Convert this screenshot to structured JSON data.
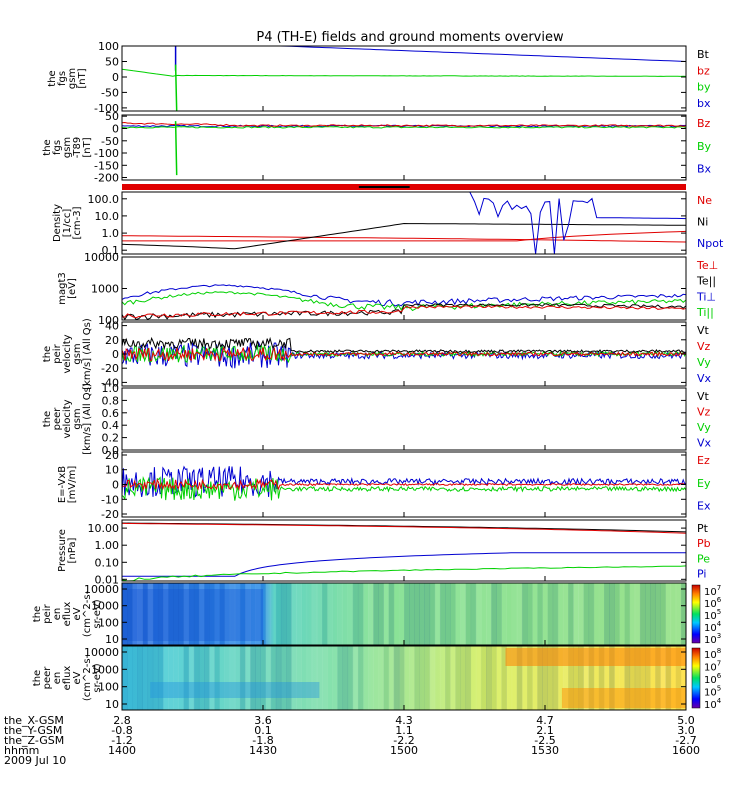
{
  "title": "P4 (TH-E) fields and ground moments overview",
  "colors": {
    "black": "#000000",
    "red": "#e00000",
    "green": "#00d000",
    "blue": "#0000d0"
  },
  "chart_data": [
    {
      "id": "fgs",
      "type": "line",
      "ylabel": [
        "the",
        "fgs",
        "gsm",
        "[nT]"
      ],
      "yticks": [
        "100",
        "50",
        "0",
        "-50",
        "-100"
      ],
      "yrange": [
        -110,
        100
      ],
      "legend": [
        {
          "label": "Bt",
          "color": "black"
        },
        {
          "label": "bz",
          "color": "red"
        },
        {
          "label": "by",
          "color": "green"
        },
        {
          "label": "bx",
          "color": "blue"
        }
      ]
    },
    {
      "id": "fgs_t89",
      "type": "line",
      "ylabel": [
        "the",
        "fgs",
        "gsm",
        "-T89",
        "[nT]"
      ],
      "yticks": [
        "50",
        "0",
        "-50",
        "-100",
        "-150",
        "-200"
      ],
      "yrange": [
        -210,
        55
      ],
      "legend": [
        {
          "label": "Bz",
          "color": "red"
        },
        {
          "label": "By",
          "color": "green"
        },
        {
          "label": "Bx",
          "color": "blue"
        }
      ]
    },
    {
      "id": "density",
      "type": "line",
      "ylabel": [
        "Density",
        "[1/cc]",
        "[cm-3]"
      ],
      "yticks": [
        "100.0",
        "10.0",
        "1.0",
        "0.1"
      ],
      "ylog": true,
      "yrange": [
        0.06,
        250
      ],
      "legend": [
        {
          "label": "Ne",
          "color": "red"
        },
        {
          "label": "Ni",
          "color": "black"
        },
        {
          "label": "Npot",
          "color": "blue"
        }
      ]
    },
    {
      "id": "temp",
      "type": "line",
      "ylabel": [
        "magt3",
        "[eV]"
      ],
      "yticks": [
        "10000",
        "1000",
        "100"
      ],
      "ylog": true,
      "yrange": [
        100,
        10000
      ],
      "legend": [
        {
          "label": "Te⊥",
          "color": "red"
        },
        {
          "label": "Te||",
          "color": "black"
        },
        {
          "label": "Ti⊥",
          "color": "blue"
        },
        {
          "label": "Ti||",
          "color": "green"
        }
      ]
    },
    {
      "id": "peir_vel",
      "type": "line",
      "ylabel": [
        "the",
        "peir",
        "velocity",
        "gsm",
        "[km/s] (All Qs)"
      ],
      "yticks": [
        "40",
        "20",
        "0",
        "-20",
        "-40"
      ],
      "yrange": [
        -45,
        45
      ],
      "legend": [
        {
          "label": "Vt",
          "color": "black"
        },
        {
          "label": "Vz",
          "color": "red"
        },
        {
          "label": "Vy",
          "color": "green"
        },
        {
          "label": "Vx",
          "color": "blue"
        }
      ]
    },
    {
      "id": "peer_vel",
      "type": "line",
      "ylabel": [
        "the",
        "peer",
        "velocity",
        "gsm",
        "[km/s] (All Qs)"
      ],
      "yticks": [
        "1.0",
        "0.8",
        "0.6",
        "0.4",
        "0.2",
        "0.0"
      ],
      "yrange": [
        0,
        1
      ],
      "legend": [
        {
          "label": "Vt",
          "color": "black"
        },
        {
          "label": "Vz",
          "color": "red"
        },
        {
          "label": "Vy",
          "color": "green"
        },
        {
          "label": "Vx",
          "color": "blue"
        }
      ]
    },
    {
      "id": "exb",
      "type": "line",
      "ylabel": [
        "E=-VxB",
        "[mV/m]"
      ],
      "yticks": [
        "20",
        "10",
        "0",
        "-10",
        "-20"
      ],
      "yrange": [
        -22,
        22
      ],
      "legend": [
        {
          "label": "Ez",
          "color": "red"
        },
        {
          "label": "Ey",
          "color": "green"
        },
        {
          "label": "Ex",
          "color": "blue"
        }
      ]
    },
    {
      "id": "pressure",
      "type": "line",
      "ylabel": [
        "Pressure",
        "[nPa]"
      ],
      "yticks": [
        "10.00",
        "1.00",
        "0.10",
        "0.01"
      ],
      "ylog": true,
      "yrange": [
        0.008,
        30
      ],
      "legend": [
        {
          "label": "Pt",
          "color": "black"
        },
        {
          "label": "Pb",
          "color": "red"
        },
        {
          "label": "Pe",
          "color": "green"
        },
        {
          "label": "Pi",
          "color": "blue"
        }
      ]
    },
    {
      "id": "peir_spec",
      "type": "heatmap",
      "ylabel": [
        "the",
        "peir",
        "en",
        "eflux",
        "eV",
        "(cm^2-s-",
        "sr-eV)"
      ],
      "yticks": [
        "10000",
        "1000",
        "100",
        "10"
      ],
      "cbar_exp": [
        "10",
        "10",
        "10",
        "10",
        "10"
      ],
      "cbar_pow": [
        "7",
        "6",
        "5",
        "4",
        "3"
      ]
    },
    {
      "id": "peer_spec",
      "type": "heatmap",
      "ylabel": [
        "the",
        "peer",
        "en",
        "eflux",
        "eV",
        "(cm^2-s-",
        "sr-eV)"
      ],
      "yticks": [
        "10000",
        "1000",
        "100",
        "10"
      ],
      "cbar_exp": [
        "10",
        "10",
        "10",
        "10",
        "10"
      ],
      "cbar_pow": [
        "8",
        "7",
        "6",
        "5",
        "4"
      ]
    }
  ],
  "xaxis": {
    "row_labels": [
      "the_X-GSM",
      "the_Y-GSM",
      "the_Z-GSM",
      "hhmm",
      "2009 Jul 10"
    ],
    "ticks": [
      {
        "x_gsm": "2.8",
        "y_gsm": "-0.8",
        "z_gsm": "-1.2",
        "hhmm": "1400"
      },
      {
        "x_gsm": "3.6",
        "y_gsm": "0.1",
        "z_gsm": "-1.8",
        "hhmm": "1430"
      },
      {
        "x_gsm": "4.3",
        "y_gsm": "1.1",
        "z_gsm": "-2.2",
        "hhmm": "1500"
      },
      {
        "x_gsm": "4.7",
        "y_gsm": "2.1",
        "z_gsm": "-2.5",
        "hhmm": "1530"
      },
      {
        "x_gsm": "5.0",
        "y_gsm": "3.0",
        "z_gsm": "-2.7",
        "hhmm": "1600"
      }
    ]
  }
}
